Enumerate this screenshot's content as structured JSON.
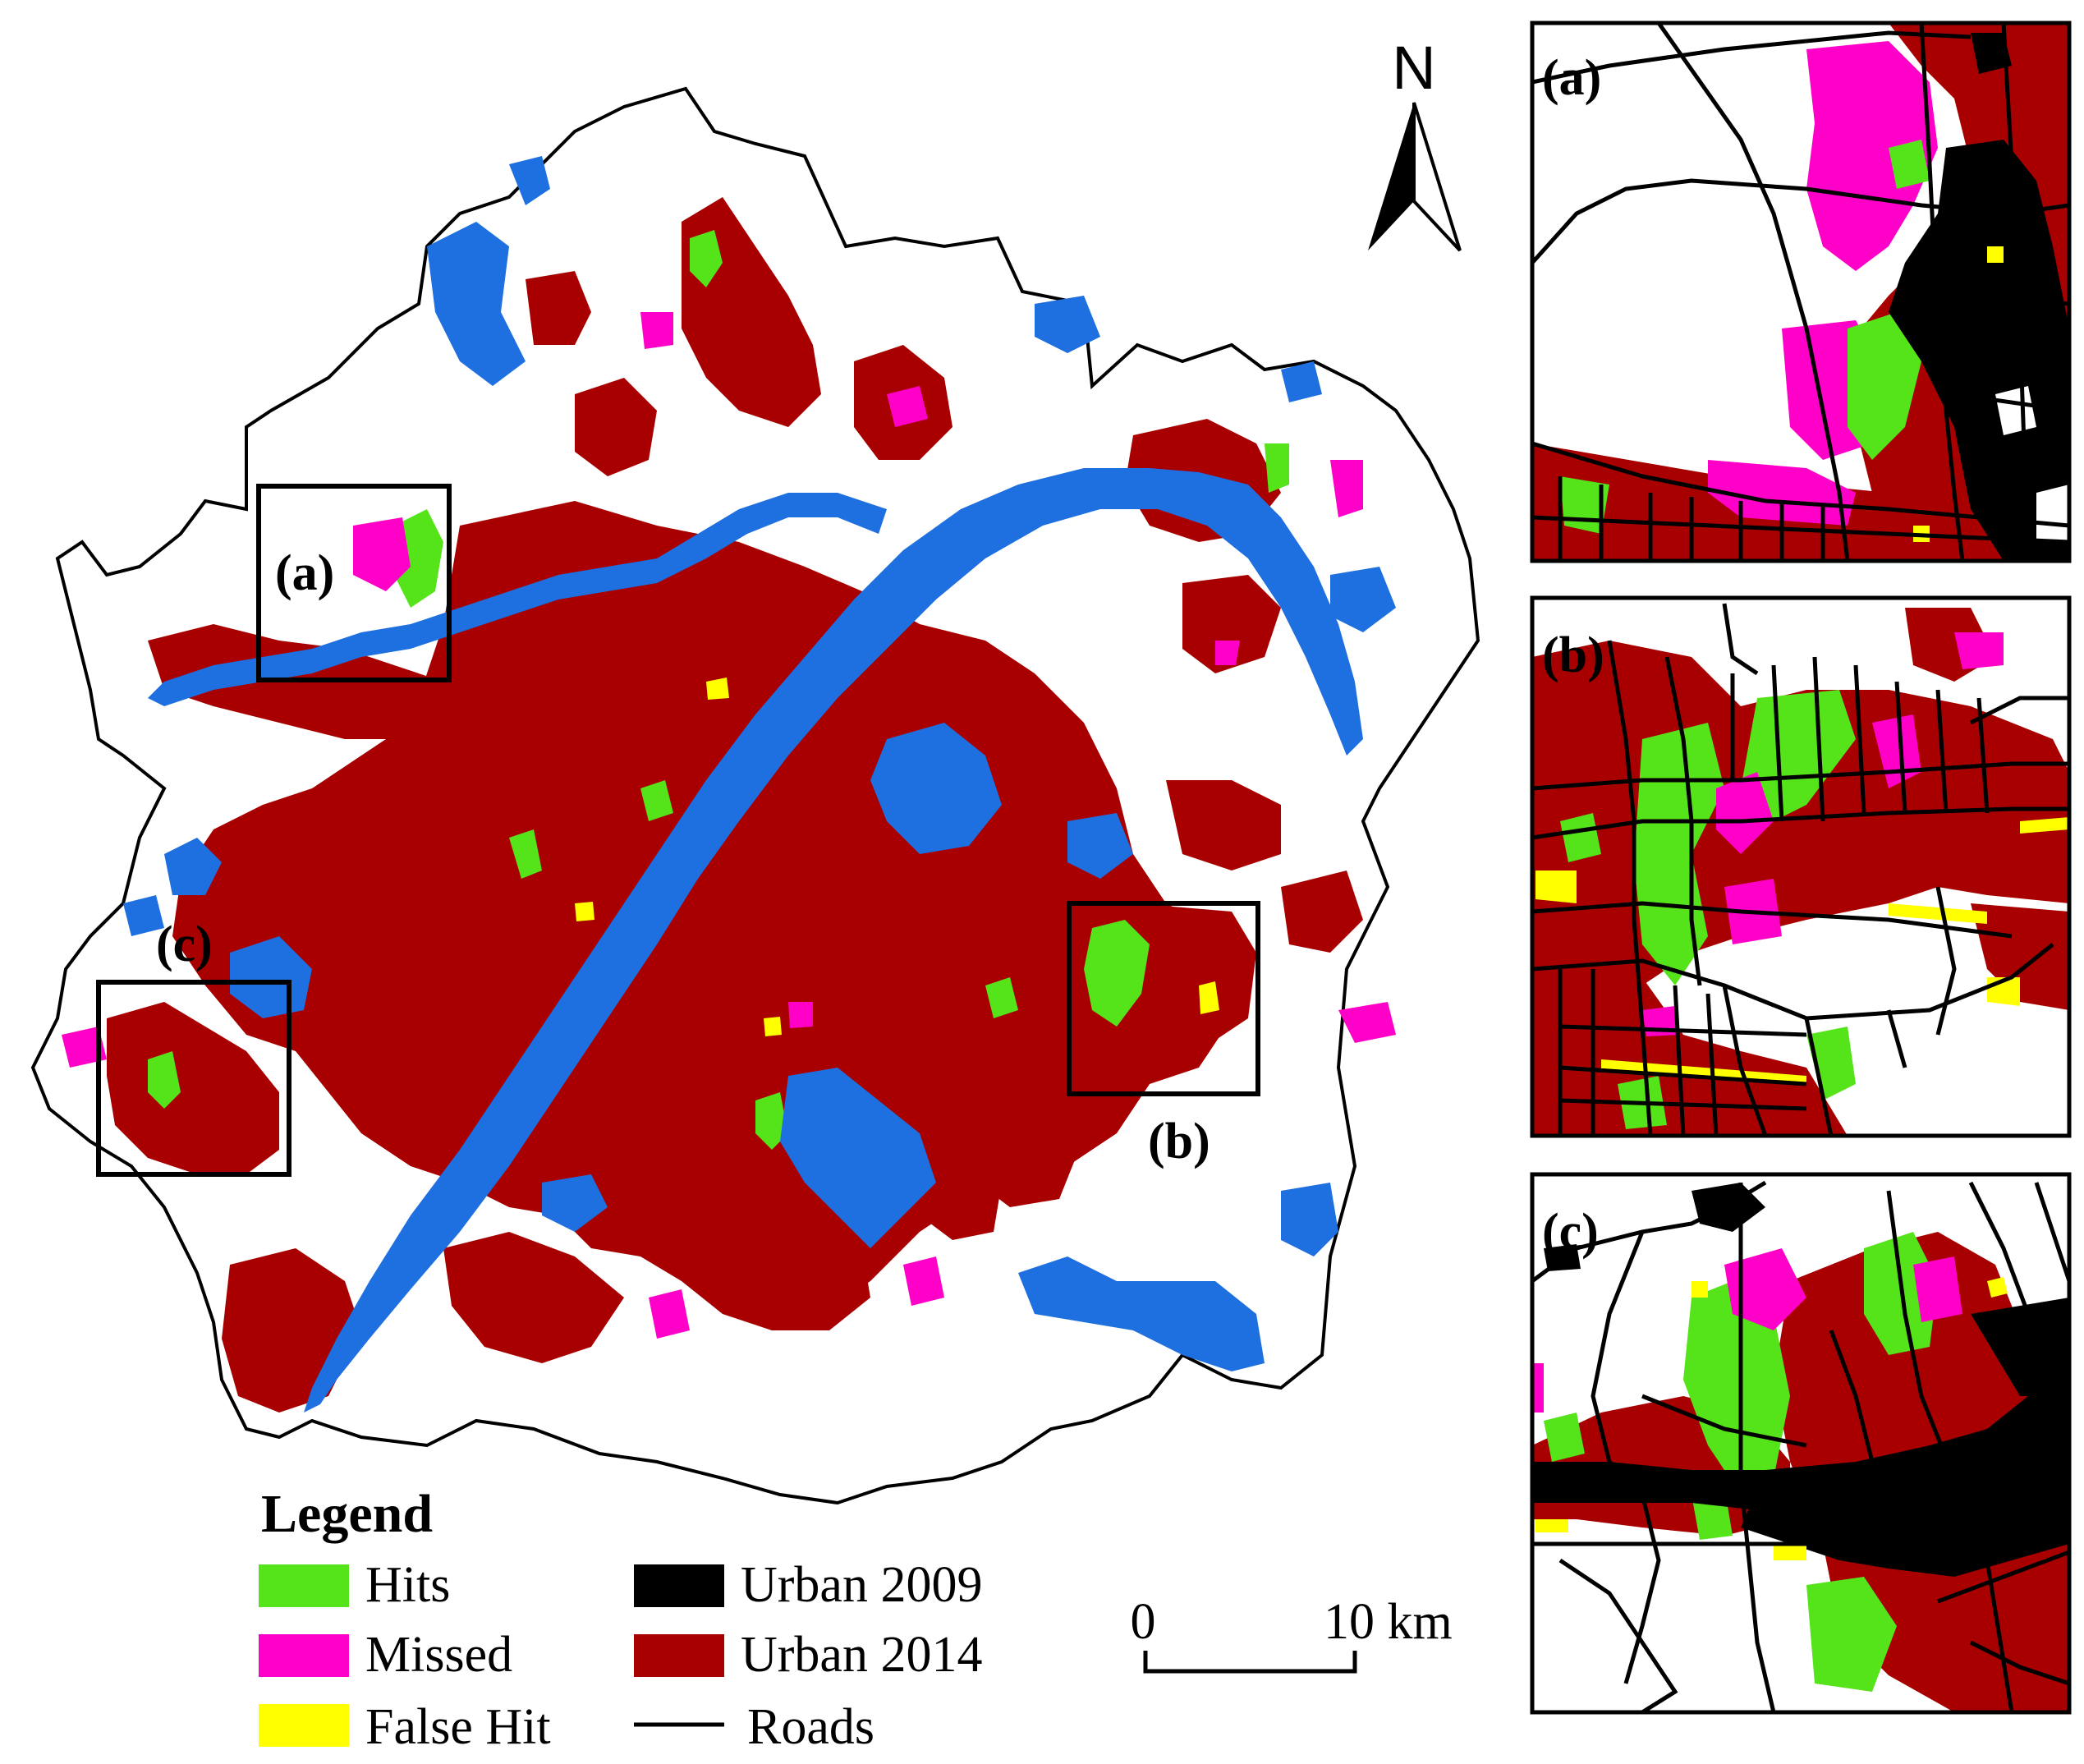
{
  "north_arrow": {
    "label": "N"
  },
  "inset_labels": {
    "a": "(a)",
    "b": "(b)",
    "c": "(c)"
  },
  "legend": {
    "title": "Legend",
    "items": [
      {
        "label": "Hits",
        "color": "#55e31a",
        "kind": "swatch"
      },
      {
        "label": "Missed",
        "color": "#ff00c8",
        "kind": "swatch"
      },
      {
        "label": "False Hit",
        "color": "#ffff00",
        "kind": "swatch"
      },
      {
        "label": "Urban 2009",
        "color": "#000000",
        "kind": "swatch"
      },
      {
        "label": "Urban 2014",
        "color": "#a80000",
        "kind": "swatch"
      },
      {
        "label": "Roads",
        "color": "#000000",
        "kind": "line"
      }
    ]
  },
  "scale_bar": {
    "start": "0",
    "end": "10 km"
  },
  "colors": {
    "water": "#1e6fe0",
    "urban_2014": "#a80000",
    "urban_2009": "#000000",
    "hits": "#55e31a",
    "missed": "#ff00c8",
    "false_hit": "#ffff00",
    "background": "#ffffff"
  }
}
